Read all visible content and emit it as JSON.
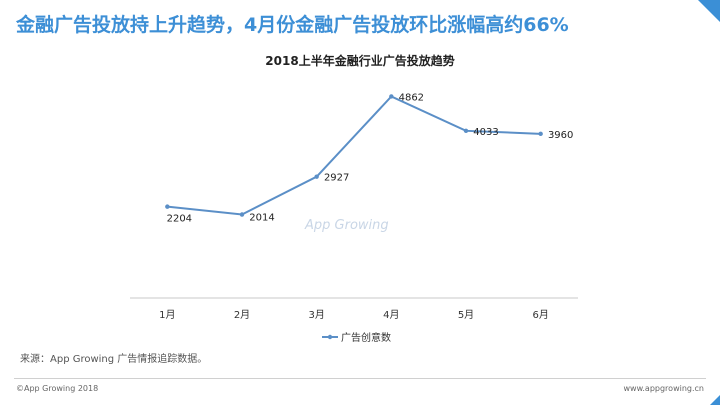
{
  "slide": {
    "title": "金融广告投放持上升趋势，4月份金融广告投放环比涨幅高约66%",
    "watermark": "App Growing",
    "source": "来源：App Growing 广告情报追踪数据。",
    "copyright": "©App Growing 2018",
    "website": "www.appgrowing.cn",
    "accent_color": "#3d8fd6"
  },
  "chart_data": {
    "type": "line",
    "title": "2018上半年金融行业广告投放趋势",
    "categories": [
      "1月",
      "2月",
      "3月",
      "4月",
      "5月",
      "6月"
    ],
    "series": [
      {
        "name": "广告创意数",
        "values": [
          2204,
          2014,
          2927,
          4862,
          4033,
          3960
        ],
        "color": "#5b8fc7"
      }
    ],
    "ylim": [
      0,
      5500
    ],
    "grid": false,
    "legend": "bottom"
  }
}
